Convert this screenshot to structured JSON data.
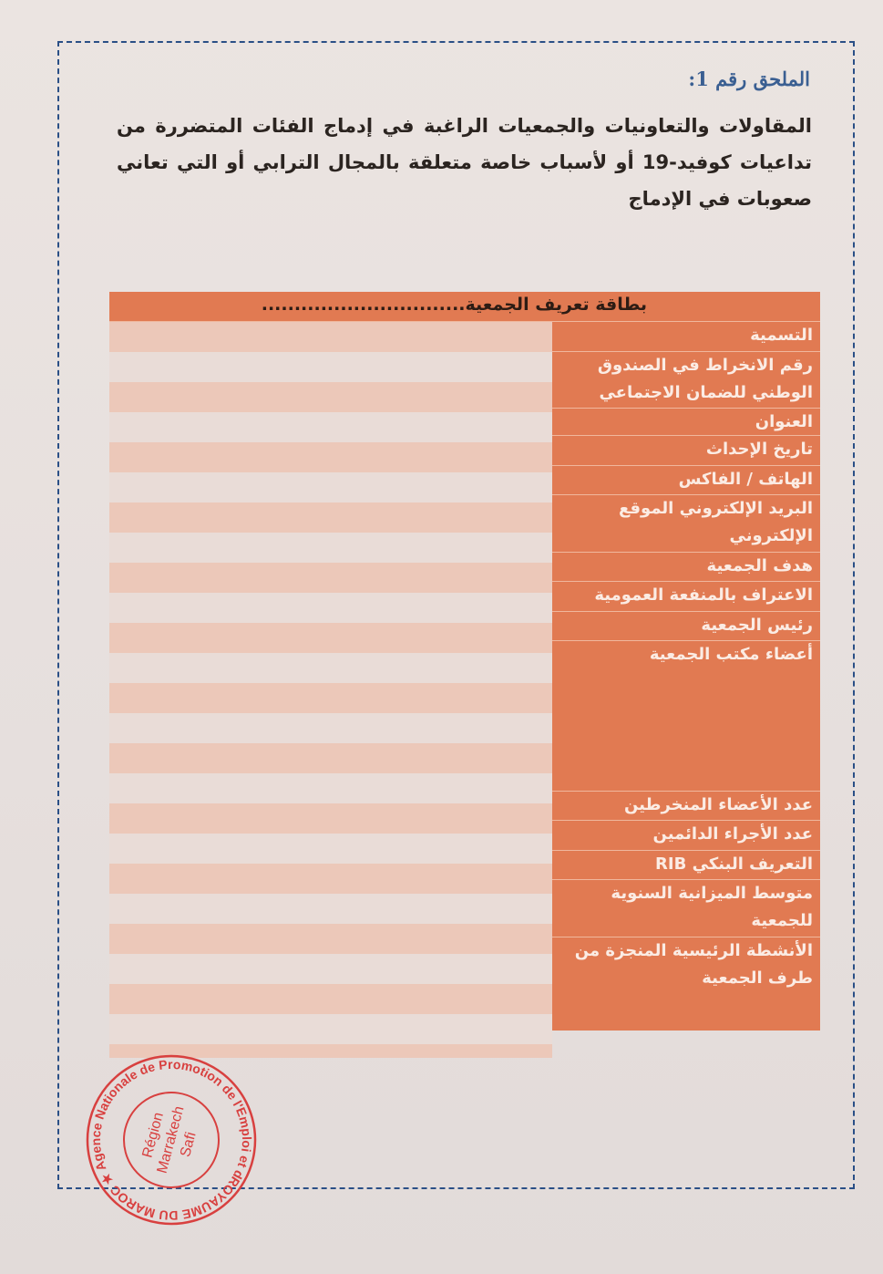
{
  "annex_label": "الملحق رقم 1:",
  "heading": "المقاولات والتعاونيات والجمعيات الراغبة في إدماج الفئات المتضررة من تداعيات كوفيد-19 أو لأسباب خاصة متعلقة بالمجال الترابي أو التي تعاني صعوبات في الإدماج",
  "table": {
    "title": "بطاقة تعريف الجمعية...............................",
    "rows": [
      {
        "label": "التسمية"
      },
      {
        "label": "رقم الانخراط في الصندوق الوطني للضمان الاجتماعي"
      },
      {
        "label": "العنوان"
      },
      {
        "label": "تاريخ الإحداث"
      },
      {
        "label": "الهاتف / الفاكس"
      },
      {
        "label": "البريد الإلكتروني الموقع الإلكتروني"
      },
      {
        "label": "هدف الجمعية"
      },
      {
        "label": "الاعتراف بالمنفعة العمومية"
      },
      {
        "label": "رئيس الجمعية"
      },
      {
        "label": "أعضاء مكتب الجمعية"
      },
      {
        "label": "عدد الأعضاء المنخرطين"
      },
      {
        "label": "عدد الأجراء الدائمين"
      },
      {
        "label": "التعريف البنكي RIB"
      },
      {
        "label": "متوسط الميزانية السنوية للجمعية"
      },
      {
        "label": "الأنشطة الرئيسية المنجزة من طرف الجمعية"
      }
    ]
  },
  "stamp": {
    "outer_text": "ROYAUME DU MAROC ★ Agence Nationale de Promotion de l'Emploi et des Compétences ★",
    "inner_line1": "Région",
    "inner_line2": "Marrakech",
    "inner_line3": "Safi",
    "color": "#d8403f"
  },
  "colors": {
    "orange": "#e17a52",
    "frame": "#2a4f86"
  }
}
